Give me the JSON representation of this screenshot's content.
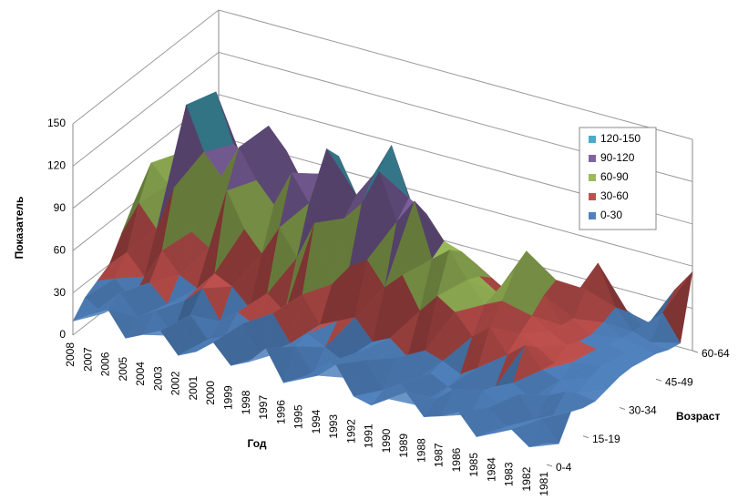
{
  "chart_data": {
    "type": "surface3d",
    "y_axis_label": "Показатель",
    "x_axis_label": "Год",
    "z_axis_label": "Возраст",
    "categories": [
      "2008",
      "2007",
      "2006",
      "2005",
      "2004",
      "2003",
      "2002",
      "2001",
      "2000",
      "1999",
      "1998",
      "1997",
      "1996",
      "1995",
      "1994",
      "1993",
      "1992",
      "1991",
      "1990",
      "1989",
      "1988",
      "1987",
      "1986",
      "1985",
      "1984",
      "1983",
      "1982",
      "1981"
    ],
    "ylim": [
      0,
      150
    ],
    "yticks": [
      0,
      30,
      60,
      90,
      120,
      150
    ],
    "bands": [
      {
        "label": "0-30",
        "color": "#4f81bd"
      },
      {
        "label": "30-60",
        "color": "#c0504d"
      },
      {
        "label": "60-90",
        "color": "#9bbb59"
      },
      {
        "label": "90-120",
        "color": "#8064a2"
      },
      {
        "label": "120-150",
        "color": "#4bacc6"
      }
    ],
    "series": [
      {
        "name": "0-4",
        "values": [
          10,
          18,
          25,
          8,
          14,
          20,
          6,
          12,
          22,
          9,
          15,
          28,
          7,
          13,
          19,
          30,
          11,
          8,
          16,
          24,
          10,
          14,
          20,
          6,
          12,
          18,
          9,
          15
        ]
      },
      {
        "name": null,
        "values": [
          20,
          12,
          30,
          16,
          24,
          10,
          28,
          14,
          20,
          32,
          12,
          18,
          26,
          10,
          22,
          14,
          30,
          12,
          20,
          8,
          16,
          26,
          12,
          20,
          10,
          14,
          22,
          8
        ]
      },
      {
        "name": null,
        "values": [
          25,
          30,
          18,
          34,
          22,
          28,
          40,
          20,
          30,
          24,
          36,
          18,
          28,
          22,
          16,
          26,
          20,
          28,
          14,
          24,
          18,
          12,
          22,
          16,
          26,
          12,
          18,
          24
        ]
      },
      {
        "name": "15-19",
        "values": [
          30,
          42,
          28,
          50,
          36,
          30,
          44,
          38,
          26,
          40,
          30,
          46,
          28,
          34,
          40,
          26,
          32,
          22,
          30,
          26,
          20,
          28,
          18,
          24,
          16,
          22,
          28,
          20
        ]
      },
      {
        "name": null,
        "values": [
          45,
          70,
          55,
          88,
          60,
          52,
          96,
          72,
          58,
          80,
          62,
          90,
          50,
          66,
          74,
          58,
          70,
          48,
          62,
          54,
          40,
          50,
          34,
          44,
          30,
          26,
          20,
          18
        ]
      },
      {
        "name": null,
        "values": [
          60,
          92,
          80,
          140,
          110,
          96,
          120,
          100,
          86,
          112,
          94,
          136,
          90,
          104,
          130,
          98,
          116,
          78,
          88,
          70,
          56,
          62,
          42,
          36,
          28,
          32,
          24,
          20
        ]
      },
      {
        "name": "30-34",
        "values": [
          55,
          80,
          96,
          120,
          146,
          112,
          104,
          132,
          118,
          96,
          108,
          124,
          100,
          118,
          142,
          108,
          100,
          84,
          80,
          66,
          58,
          76,
          48,
          40,
          34,
          30,
          26,
          22
        ]
      },
      {
        "name": null,
        "values": [
          40,
          60,
          72,
          90,
          102,
          88,
          80,
          96,
          84,
          74,
          86,
          90,
          70,
          84,
          96,
          78,
          72,
          64,
          66,
          58,
          48,
          84,
          56,
          38,
          30,
          28,
          24,
          22
        ]
      },
      {
        "name": null,
        "values": [
          28,
          44,
          52,
          62,
          70,
          64,
          58,
          66,
          60,
          54,
          58,
          62,
          50,
          56,
          62,
          52,
          48,
          46,
          50,
          44,
          36,
          52,
          60,
          36,
          28,
          24,
          22,
          20
        ]
      },
      {
        "name": "45-49",
        "values": [
          20,
          30,
          36,
          40,
          44,
          42,
          38,
          42,
          40,
          36,
          38,
          40,
          34,
          36,
          40,
          34,
          32,
          30,
          34,
          30,
          26,
          32,
          36,
          50,
          30,
          22,
          20,
          18
        ]
      },
      {
        "name": null,
        "values": [
          12,
          20,
          24,
          26,
          30,
          28,
          26,
          30,
          26,
          24,
          26,
          28,
          24,
          26,
          28,
          24,
          22,
          20,
          24,
          22,
          18,
          22,
          26,
          62,
          34,
          20,
          16,
          14
        ]
      },
      {
        "name": null,
        "values": [
          8,
          14,
          16,
          18,
          20,
          18,
          18,
          20,
          18,
          16,
          18,
          20,
          16,
          18,
          20,
          16,
          14,
          14,
          16,
          14,
          12,
          14,
          18,
          30,
          24,
          16,
          30,
          12
        ]
      },
      {
        "name": "60-64",
        "values": [
          4,
          8,
          10,
          12,
          14,
          12,
          10,
          14,
          12,
          10,
          12,
          14,
          10,
          12,
          14,
          10,
          8,
          8,
          10,
          8,
          6,
          8,
          12,
          14,
          12,
          10,
          40,
          56
        ]
      }
    ]
  }
}
